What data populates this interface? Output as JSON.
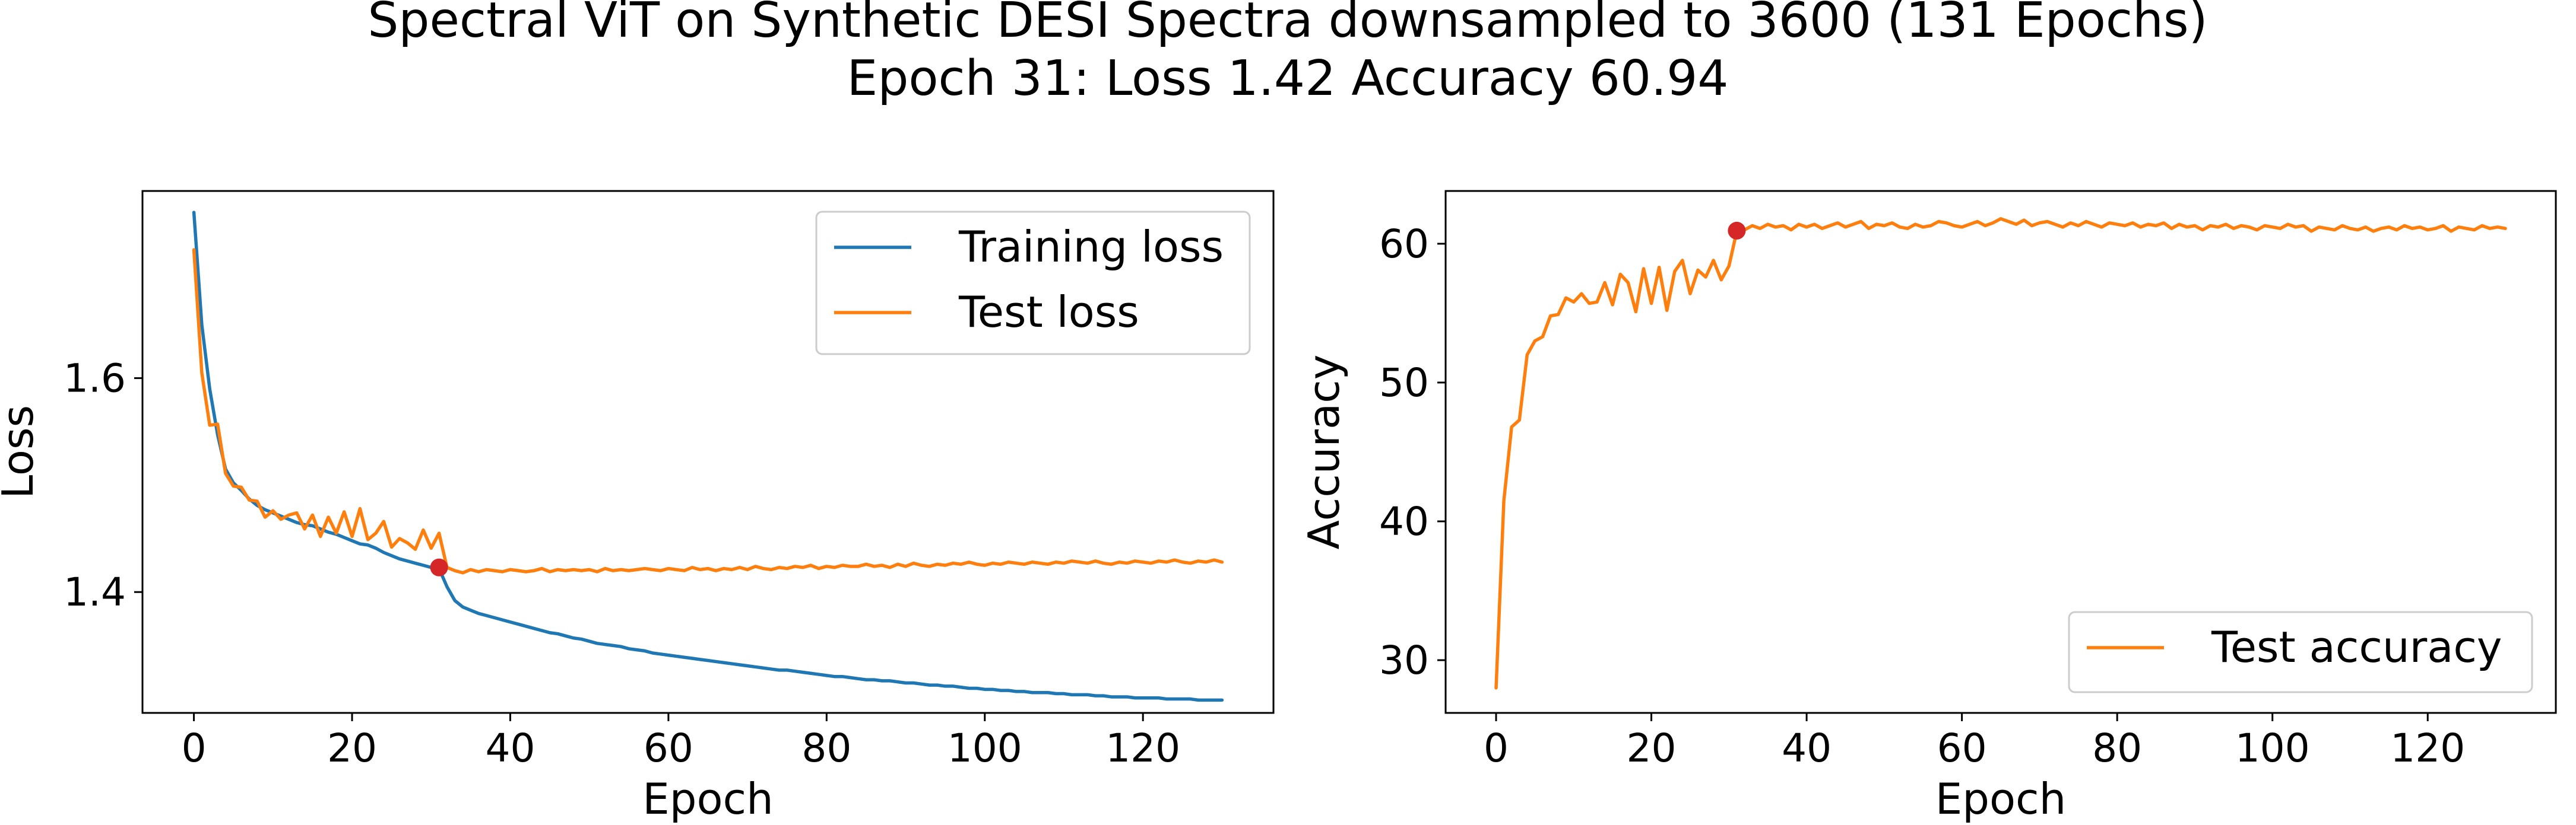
{
  "figure": {
    "title_line1": "Spectral ViT on Synthetic DESI Spectra downsampled to 3600 (131 Epochs)",
    "title_line2": "Epoch 31: Loss 1.42 Accuracy 60.94"
  },
  "colors": {
    "training": "#1f77b4",
    "test": "#ff7f0e",
    "marker": "#d62728"
  },
  "chart_data": [
    {
      "type": "line",
      "xlabel": "Epoch",
      "ylabel": "Loss",
      "xlim": [
        -6.5,
        136.5
      ],
      "ylim": [
        1.287,
        1.775
      ],
      "xticks": [
        0,
        20,
        40,
        60,
        80,
        100,
        120
      ],
      "yticks": [
        1.4,
        1.6
      ],
      "grid": false,
      "legend_position": "upper right",
      "x": {
        "start": 0,
        "step": 1
      },
      "series": [
        {
          "name": "Training loss",
          "color": "#1f77b4",
          "values": [
            1.755,
            1.65,
            1.59,
            1.547,
            1.515,
            1.502,
            1.495,
            1.487,
            1.481,
            1.477,
            1.474,
            1.471,
            1.468,
            1.465,
            1.463,
            1.462,
            1.459,
            1.456,
            1.454,
            1.451,
            1.448,
            1.445,
            1.444,
            1.441,
            1.437,
            1.434,
            1.431,
            1.429,
            1.427,
            1.425,
            1.423,
            1.422,
            1.405,
            1.392,
            1.386,
            1.383,
            1.38,
            1.378,
            1.376,
            1.374,
            1.372,
            1.37,
            1.368,
            1.366,
            1.364,
            1.362,
            1.361,
            1.359,
            1.357,
            1.356,
            1.354,
            1.352,
            1.351,
            1.35,
            1.349,
            1.347,
            1.346,
            1.345,
            1.343,
            1.342,
            1.341,
            1.34,
            1.339,
            1.338,
            1.337,
            1.336,
            1.335,
            1.334,
            1.333,
            1.332,
            1.331,
            1.33,
            1.329,
            1.328,
            1.327,
            1.327,
            1.326,
            1.325,
            1.324,
            1.323,
            1.322,
            1.321,
            1.321,
            1.32,
            1.319,
            1.318,
            1.318,
            1.317,
            1.317,
            1.316,
            1.315,
            1.315,
            1.314,
            1.313,
            1.313,
            1.312,
            1.312,
            1.311,
            1.31,
            1.31,
            1.309,
            1.309,
            1.308,
            1.308,
            1.307,
            1.307,
            1.306,
            1.306,
            1.306,
            1.305,
            1.305,
            1.304,
            1.304,
            1.304,
            1.303,
            1.303,
            1.302,
            1.302,
            1.302,
            1.301,
            1.301,
            1.301,
            1.301,
            1.3,
            1.3,
            1.3,
            1.3,
            1.299,
            1.299,
            1.299,
            1.299
          ]
        },
        {
          "name": "Test loss",
          "color": "#ff7f0e",
          "values": [
            1.72,
            1.605,
            1.556,
            1.557,
            1.511,
            1.499,
            1.498,
            1.486,
            1.485,
            1.47,
            1.476,
            1.468,
            1.472,
            1.474,
            1.459,
            1.472,
            1.452,
            1.47,
            1.455,
            1.475,
            1.452,
            1.478,
            1.449,
            1.455,
            1.466,
            1.442,
            1.45,
            1.446,
            1.44,
            1.458,
            1.441,
            1.455,
            1.423,
            1.42,
            1.418,
            1.421,
            1.419,
            1.421,
            1.42,
            1.419,
            1.421,
            1.42,
            1.419,
            1.42,
            1.422,
            1.419,
            1.421,
            1.42,
            1.421,
            1.42,
            1.421,
            1.419,
            1.422,
            1.42,
            1.421,
            1.42,
            1.421,
            1.422,
            1.421,
            1.42,
            1.422,
            1.421,
            1.42,
            1.423,
            1.421,
            1.422,
            1.42,
            1.422,
            1.421,
            1.423,
            1.421,
            1.424,
            1.422,
            1.421,
            1.423,
            1.422,
            1.424,
            1.423,
            1.425,
            1.422,
            1.424,
            1.423,
            1.425,
            1.424,
            1.424,
            1.426,
            1.424,
            1.425,
            1.423,
            1.426,
            1.424,
            1.427,
            1.425,
            1.424,
            1.426,
            1.425,
            1.427,
            1.426,
            1.428,
            1.426,
            1.425,
            1.427,
            1.426,
            1.428,
            1.427,
            1.426,
            1.428,
            1.427,
            1.426,
            1.428,
            1.427,
            1.429,
            1.428,
            1.427,
            1.429,
            1.427,
            1.426,
            1.428,
            1.427,
            1.429,
            1.428,
            1.427,
            1.429,
            1.428,
            1.43,
            1.428,
            1.427,
            1.429,
            1.428,
            1.43,
            1.428
          ]
        }
      ],
      "highlight": {
        "x": 31,
        "y": 1.423,
        "color": "#d62728"
      }
    },
    {
      "type": "line",
      "xlabel": "Epoch",
      "ylabel": "Accuracy",
      "xlim": [
        -6.5,
        136.5
      ],
      "ylim": [
        26.2,
        63.8
      ],
      "xticks": [
        0,
        20,
        40,
        60,
        80,
        100,
        120
      ],
      "yticks": [
        30,
        40,
        50,
        60
      ],
      "grid": false,
      "legend_position": "lower right",
      "x": {
        "start": 0,
        "step": 1
      },
      "series": [
        {
          "name": "Test accuracy",
          "color": "#ff7f0e",
          "values": [
            28.0,
            41.5,
            46.8,
            47.3,
            52.0,
            53.0,
            53.3,
            54.8,
            54.9,
            56.1,
            55.8,
            56.4,
            55.7,
            55.8,
            57.2,
            55.6,
            57.8,
            57.2,
            55.1,
            58.2,
            55.7,
            58.3,
            55.2,
            58.0,
            58.8,
            56.4,
            58.1,
            57.6,
            58.8,
            57.4,
            58.4,
            60.9,
            61.0,
            61.3,
            61.1,
            61.4,
            61.2,
            61.3,
            61.0,
            61.4,
            61.2,
            61.4,
            61.1,
            61.3,
            61.5,
            61.2,
            61.4,
            61.6,
            61.1,
            61.4,
            61.3,
            61.5,
            61.2,
            61.1,
            61.4,
            61.2,
            61.3,
            61.6,
            61.5,
            61.3,
            61.2,
            61.4,
            61.6,
            61.3,
            61.5,
            61.8,
            61.6,
            61.4,
            61.7,
            61.3,
            61.5,
            61.6,
            61.4,
            61.2,
            61.5,
            61.3,
            61.6,
            61.4,
            61.2,
            61.5,
            61.4,
            61.3,
            61.5,
            61.2,
            61.4,
            61.3,
            61.5,
            61.1,
            61.4,
            61.2,
            61.3,
            61.0,
            61.3,
            61.2,
            61.4,
            61.1,
            61.3,
            61.2,
            61.0,
            61.3,
            61.2,
            61.1,
            61.4,
            61.2,
            61.3,
            60.9,
            61.2,
            61.1,
            61.0,
            61.3,
            61.1,
            61.0,
            61.2,
            60.9,
            61.1,
            61.2,
            61.0,
            61.3,
            61.1,
            61.2,
            61.0,
            61.1,
            61.3,
            60.9,
            61.2,
            61.1,
            61.0,
            61.3,
            61.1,
            61.2,
            61.1
          ]
        }
      ],
      "highlight": {
        "x": 31,
        "y": 60.94,
        "color": "#d62728"
      }
    }
  ]
}
